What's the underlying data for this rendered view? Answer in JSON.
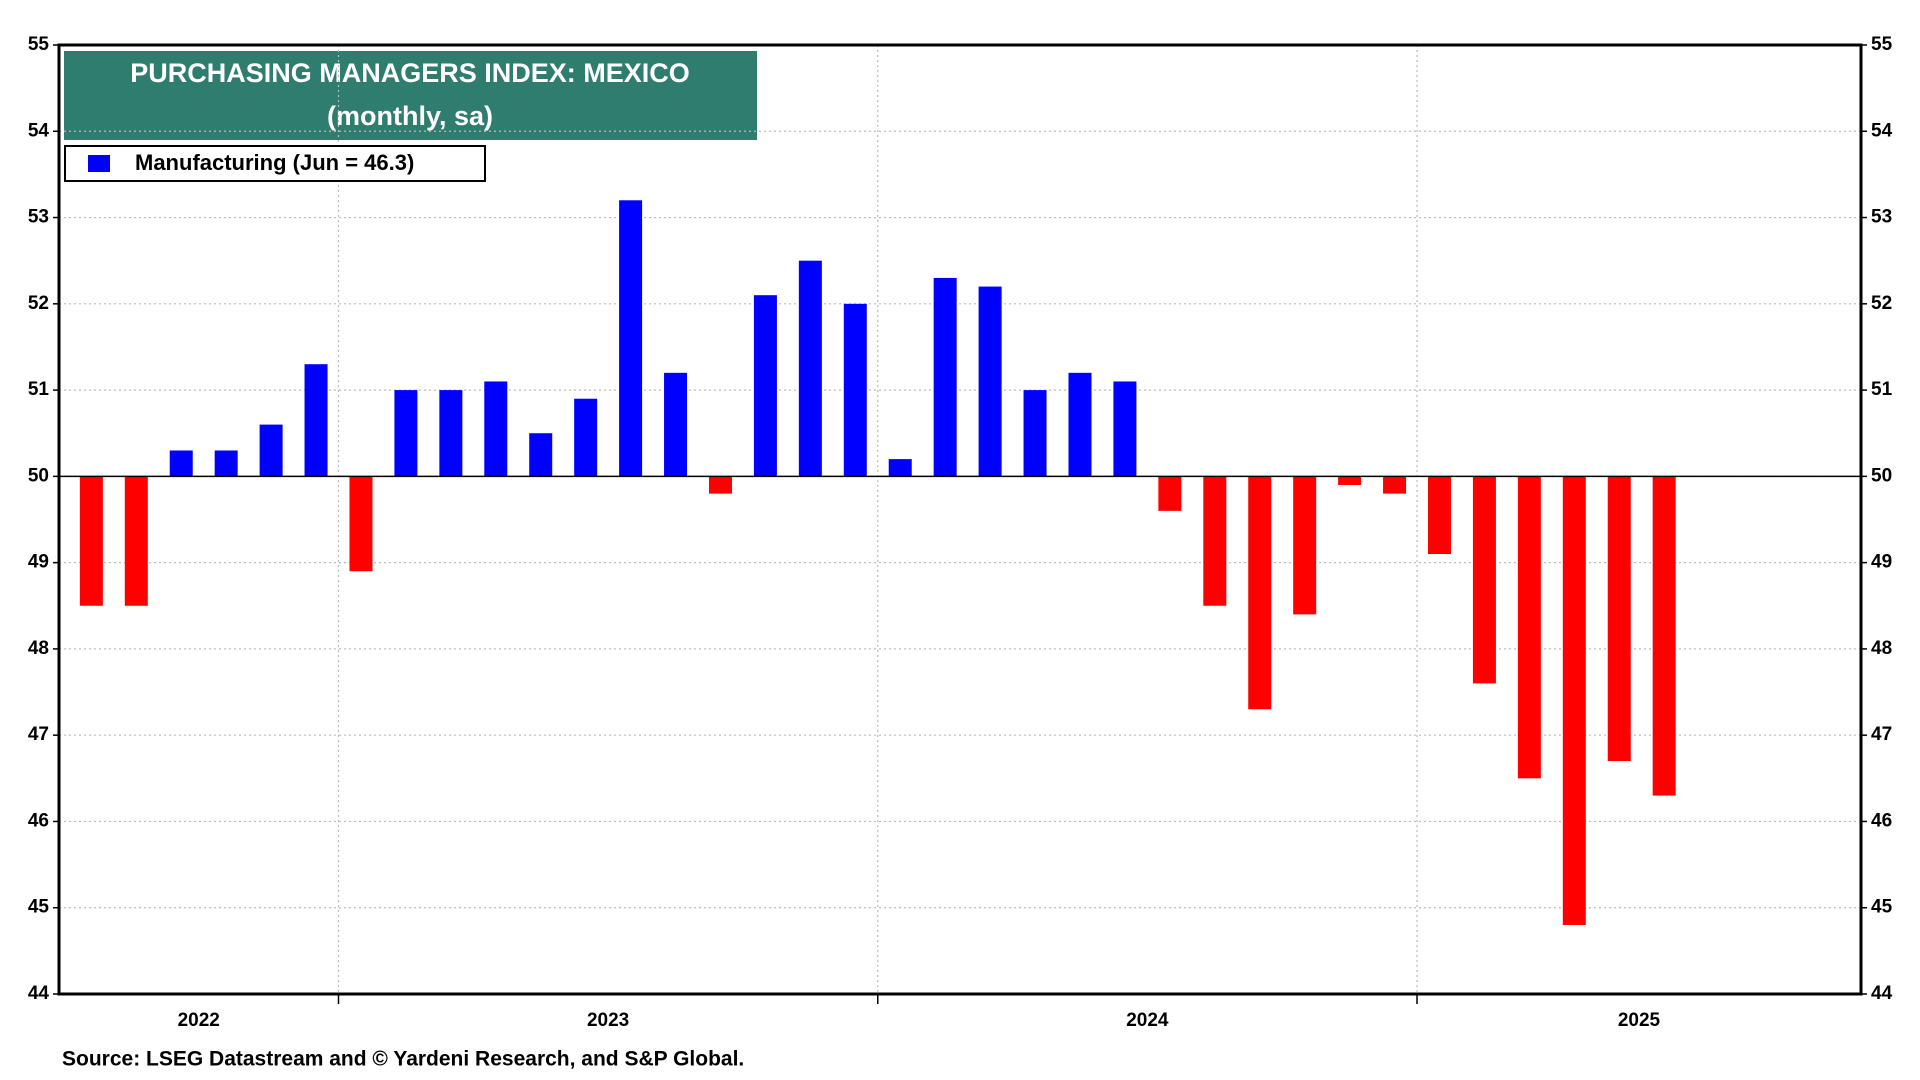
{
  "chart_data": {
    "type": "bar",
    "title": "PURCHASING MANAGERS INDEX: MEXICO",
    "subtitle": "(monthly, sa)",
    "source": "Source: LSEG Datastream and © Yardeni Research, and S&P Global.",
    "year_labels": [
      "2022",
      "2023",
      "2024",
      "2025"
    ],
    "series": [
      {
        "name": "Manufacturing (Jun = 46.3)",
        "color": "#0000ff",
        "color_below": "#ff0000",
        "values": [
          48.5,
          48.5,
          50.3,
          50.3,
          50.6,
          51.3,
          48.9,
          51.0,
          51.0,
          51.1,
          50.5,
          50.9,
          53.2,
          51.2,
          49.8,
          52.1,
          52.5,
          52.0,
          50.2,
          52.3,
          52.2,
          51.0,
          51.2,
          51.1,
          49.6,
          48.5,
          47.3,
          48.4,
          49.9,
          49.8,
          49.1,
          47.6,
          46.5,
          44.8,
          46.7,
          46.3
        ]
      }
    ],
    "baseline": 50,
    "ylim": [
      44,
      55
    ],
    "yticks": [
      44,
      45,
      46,
      47,
      48,
      49,
      50,
      51,
      52,
      53,
      54,
      55
    ],
    "grid": true
  }
}
